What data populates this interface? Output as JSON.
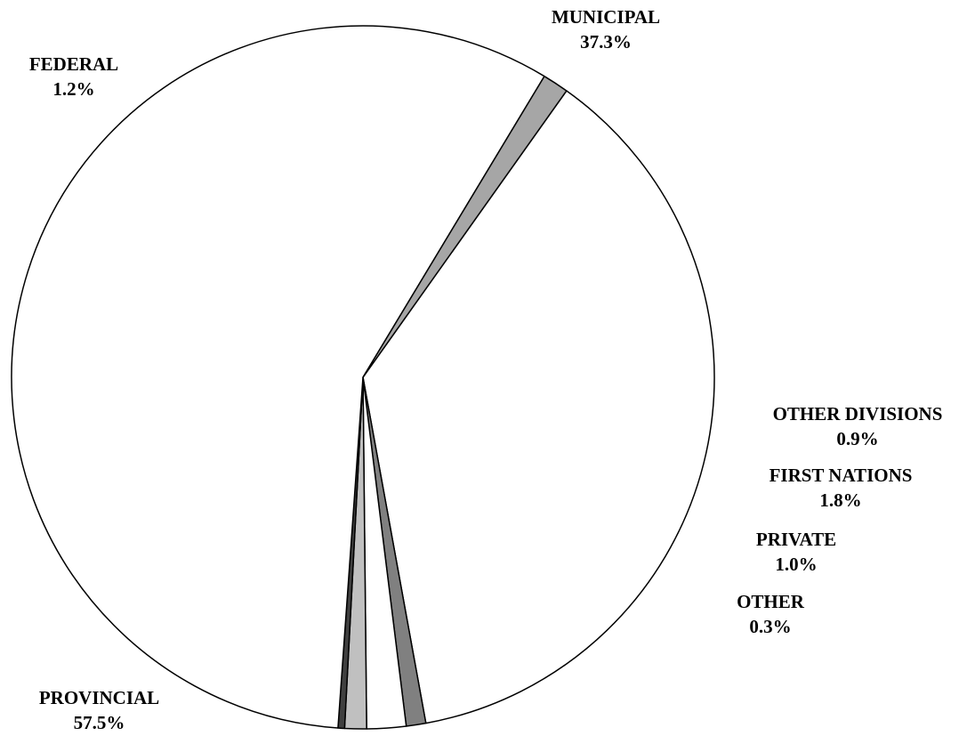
{
  "chart_data": {
    "type": "pie",
    "title": "",
    "slices": [
      {
        "name": "MUNICIPAL",
        "value": 37.3,
        "label": "37.3%",
        "color": "#ffffff"
      },
      {
        "name": "OTHER DIVISIONS",
        "value": 0.9,
        "label": "0.9%",
        "color": "#808080"
      },
      {
        "name": "FIRST NATIONS",
        "value": 1.8,
        "label": "1.8%",
        "color": "#ffffff"
      },
      {
        "name": "PRIVATE",
        "value": 1.0,
        "label": "1.0%",
        "color": "#c0c0c0"
      },
      {
        "name": "OTHER",
        "value": 0.3,
        "label": "0.3%",
        "color": "#404040"
      },
      {
        "name": "PROVINCIAL",
        "value": 57.5,
        "label": "57.5%",
        "color": "#ffffff"
      },
      {
        "name": "FEDERAL",
        "value": 1.2,
        "label": "1.2%",
        "color": "#a6a6a6"
      }
    ],
    "legend": "none"
  }
}
